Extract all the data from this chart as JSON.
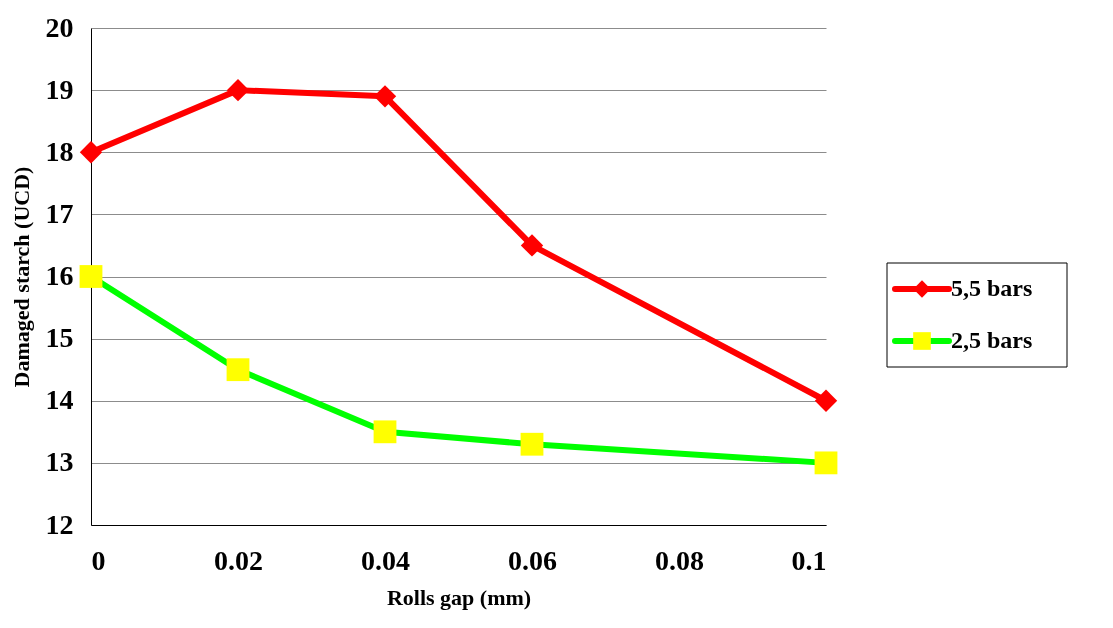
{
  "chart_data": {
    "type": "line",
    "xlabel": "Rolls gap (mm)",
    "ylabel": "Damaged starch (UCD)",
    "x": [
      0,
      0.02,
      0.04,
      0.06,
      0.1
    ],
    "series": [
      {
        "name": "5,5 bars",
        "color": "#ff0000",
        "marker": "diamond",
        "values": [
          18,
          19,
          18.9,
          16.5,
          14
        ]
      },
      {
        "name": "2,5 bars",
        "color": "#00ff00",
        "marker": "square",
        "colors": [
          "#ffff00",
          "#ffff00",
          "#ffff00",
          "#ffff00",
          "#ffff00"
        ],
        "values": [
          16,
          14.5,
          13.5,
          13.3,
          13
        ]
      }
    ],
    "xlim": [
      0,
      0.1
    ],
    "xticks": [
      0,
      0.02,
      0.04,
      0.06,
      0.08,
      0.1
    ],
    "ylim": [
      12,
      20
    ],
    "yticks": [
      12,
      13,
      14,
      15,
      16,
      17,
      18,
      19,
      20
    ],
    "grid": "y",
    "legend": "right",
    "line_style": "solid"
  }
}
